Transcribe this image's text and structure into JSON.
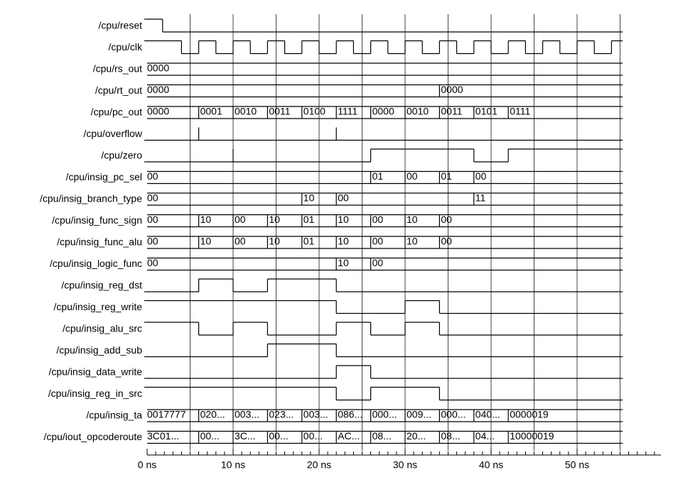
{
  "time_axis": {
    "ticks": [
      {
        "value": 0,
        "label": "0 ns"
      },
      {
        "value": 10,
        "label": "10 ns"
      },
      {
        "value": 20,
        "label": "20 ns"
      },
      {
        "value": 30,
        "label": "30 ns"
      },
      {
        "value": 40,
        "label": "40 ns"
      },
      {
        "value": 50,
        "label": "50 ns"
      }
    ]
  },
  "signals": [
    {
      "name": "/cpu/reset",
      "kind": "bit",
      "init": 1,
      "edges": [
        {
          "t": 1.8,
          "level": 0
        }
      ]
    },
    {
      "name": "/cpu/clk",
      "kind": "bit",
      "init": 1,
      "edges": [
        {
          "t": 4,
          "level": 0
        },
        {
          "t": 6,
          "level": 1
        },
        {
          "t": 8,
          "level": 0
        },
        {
          "t": 10,
          "level": 1
        },
        {
          "t": 12,
          "level": 0
        },
        {
          "t": 14,
          "level": 1
        },
        {
          "t": 16,
          "level": 0
        },
        {
          "t": 18,
          "level": 1
        },
        {
          "t": 20,
          "level": 0
        },
        {
          "t": 22,
          "level": 1
        },
        {
          "t": 24,
          "level": 0
        },
        {
          "t": 26,
          "level": 1
        },
        {
          "t": 28,
          "level": 0
        },
        {
          "t": 30,
          "level": 1
        },
        {
          "t": 32,
          "level": 0
        },
        {
          "t": 34,
          "level": 1
        },
        {
          "t": 36,
          "level": 0
        },
        {
          "t": 38,
          "level": 1
        },
        {
          "t": 40,
          "level": 0
        },
        {
          "t": 42,
          "level": 1
        },
        {
          "t": 44,
          "level": 0
        },
        {
          "t": 46,
          "level": 1
        },
        {
          "t": 48,
          "level": 0
        },
        {
          "t": 50,
          "level": 1
        },
        {
          "t": 52,
          "level": 0
        },
        {
          "t": 54,
          "level": 1
        }
      ]
    },
    {
      "name": "/cpu/rs_out",
      "kind": "bus",
      "segments": [
        {
          "t": 0,
          "value": "0000"
        }
      ]
    },
    {
      "name": "/cpu/rt_out",
      "kind": "bus",
      "segments": [
        {
          "t": 0,
          "value": "0000"
        },
        {
          "t": 34,
          "value": "0000"
        }
      ]
    },
    {
      "name": "/cpu/pc_out",
      "kind": "bus",
      "segments": [
        {
          "t": 0,
          "value": "0000"
        },
        {
          "t": 6,
          "value": "0001"
        },
        {
          "t": 10,
          "value": "0010"
        },
        {
          "t": 14,
          "value": "0011"
        },
        {
          "t": 18,
          "value": "0100"
        },
        {
          "t": 22,
          "value": "1111"
        },
        {
          "t": 26,
          "value": "0000"
        },
        {
          "t": 30,
          "value": "0010"
        },
        {
          "t": 34,
          "value": "0011"
        },
        {
          "t": 38,
          "value": "0101"
        },
        {
          "t": 42,
          "value": "0111"
        }
      ]
    },
    {
      "name": "/cpu/overflow",
      "kind": "bit",
      "init": 0,
      "edges": [],
      "glitches": [
        6,
        22
      ]
    },
    {
      "name": "/cpu/zero",
      "kind": "bit",
      "init": 0,
      "edges": [
        {
          "t": 26,
          "level": 1
        },
        {
          "t": 38,
          "level": 0
        },
        {
          "t": 42,
          "level": 1
        }
      ],
      "glitches": [
        10
      ]
    },
    {
      "name": "/cpu/insig_pc_sel",
      "kind": "bus",
      "segments": [
        {
          "t": 0,
          "value": "00"
        },
        {
          "t": 26,
          "value": "01"
        },
        {
          "t": 30,
          "value": "00"
        },
        {
          "t": 34,
          "value": "01"
        },
        {
          "t": 38,
          "value": "00"
        }
      ]
    },
    {
      "name": "/cpu/insig_branch_type",
      "kind": "bus",
      "segments": [
        {
          "t": 0,
          "value": "00"
        },
        {
          "t": 18,
          "value": "10"
        },
        {
          "t": 22,
          "value": "00"
        },
        {
          "t": 38,
          "value": "11"
        }
      ]
    },
    {
      "name": "/cpu/insig_func_sign",
      "kind": "bus",
      "segments": [
        {
          "t": 0,
          "value": "00"
        },
        {
          "t": 6,
          "value": "10"
        },
        {
          "t": 10,
          "value": "00"
        },
        {
          "t": 14,
          "value": "10"
        },
        {
          "t": 18,
          "value": "01"
        },
        {
          "t": 22,
          "value": "10"
        },
        {
          "t": 26,
          "value": "00"
        },
        {
          "t": 30,
          "value": "10"
        },
        {
          "t": 34,
          "value": "00"
        }
      ]
    },
    {
      "name": "/cpu/insig_func_alu",
      "kind": "bus",
      "segments": [
        {
          "t": 0,
          "value": "00"
        },
        {
          "t": 6,
          "value": "10"
        },
        {
          "t": 10,
          "value": "00"
        },
        {
          "t": 14,
          "value": "10"
        },
        {
          "t": 18,
          "value": "01"
        },
        {
          "t": 22,
          "value": "10"
        },
        {
          "t": 26,
          "value": "00"
        },
        {
          "t": 30,
          "value": "10"
        },
        {
          "t": 34,
          "value": "00"
        }
      ]
    },
    {
      "name": "/cpu/insig_logic_func",
      "kind": "bus",
      "segments": [
        {
          "t": 0,
          "value": "00"
        },
        {
          "t": 22,
          "value": "10"
        },
        {
          "t": 26,
          "value": "00"
        }
      ]
    },
    {
      "name": "/cpu/insig_reg_dst",
      "kind": "bit",
      "init": 0,
      "edges": [
        {
          "t": 6,
          "level": 1
        },
        {
          "t": 10,
          "level": 0
        },
        {
          "t": 14,
          "level": 1
        },
        {
          "t": 22,
          "level": 0
        }
      ]
    },
    {
      "name": "/cpu/insig_reg_write",
      "kind": "bit",
      "init": 1,
      "edges": [
        {
          "t": 22,
          "level": 0
        },
        {
          "t": 30,
          "level": 1
        },
        {
          "t": 34,
          "level": 0
        }
      ]
    },
    {
      "name": "/cpu/insig_alu_src",
      "kind": "bit",
      "init": 1,
      "edges": [
        {
          "t": 6,
          "level": 0
        },
        {
          "t": 10,
          "level": 1
        },
        {
          "t": 14,
          "level": 0
        },
        {
          "t": 22,
          "level": 1
        },
        {
          "t": 26,
          "level": 0
        },
        {
          "t": 30,
          "level": 1
        },
        {
          "t": 34,
          "level": 0
        }
      ]
    },
    {
      "name": "/cpu/insig_add_sub",
      "kind": "bit",
      "init": 0,
      "edges": [
        {
          "t": 14,
          "level": 1
        },
        {
          "t": 22,
          "level": 0
        }
      ]
    },
    {
      "name": "/cpu/insig_data_write",
      "kind": "bit",
      "init": 0,
      "edges": [
        {
          "t": 22,
          "level": 1
        },
        {
          "t": 26,
          "level": 0
        }
      ]
    },
    {
      "name": "/cpu/insig_reg_in_src",
      "kind": "bit",
      "init": 1,
      "edges": [
        {
          "t": 22,
          "level": 0
        },
        {
          "t": 26,
          "level": 1
        },
        {
          "t": 34,
          "level": 0
        }
      ]
    },
    {
      "name": "/cpu/insig_ta",
      "kind": "bus",
      "segments": [
        {
          "t": 0,
          "value": "0017777"
        },
        {
          "t": 6,
          "value": "020..."
        },
        {
          "t": 10,
          "value": "003..."
        },
        {
          "t": 14,
          "value": "023..."
        },
        {
          "t": 18,
          "value": "003..."
        },
        {
          "t": 22,
          "value": "086..."
        },
        {
          "t": 26,
          "value": "000..."
        },
        {
          "t": 30,
          "value": "009..."
        },
        {
          "t": 34,
          "value": "000..."
        },
        {
          "t": 38,
          "value": "040..."
        },
        {
          "t": 42,
          "value": "0000019"
        }
      ]
    },
    {
      "name": "/cpu/iout_opcoderoute",
      "kind": "bus",
      "segments": [
        {
          "t": 0,
          "value": "3C01..."
        },
        {
          "t": 6,
          "value": "00..."
        },
        {
          "t": 10,
          "value": "3C..."
        },
        {
          "t": 14,
          "value": "00..."
        },
        {
          "t": 18,
          "value": "00..."
        },
        {
          "t": 22,
          "value": "AC..."
        },
        {
          "t": 26,
          "value": "08..."
        },
        {
          "t": 30,
          "value": "20..."
        },
        {
          "t": 34,
          "value": "08..."
        },
        {
          "t": 38,
          "value": "04..."
        },
        {
          "t": 42,
          "value": "10000019"
        }
      ]
    }
  ]
}
